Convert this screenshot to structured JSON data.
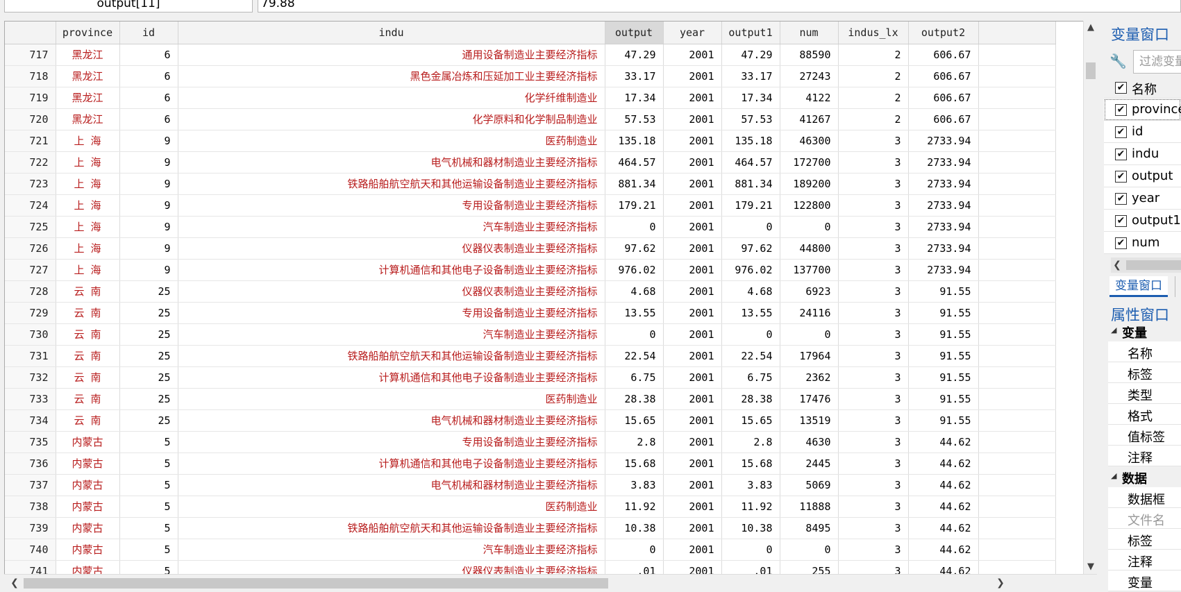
{
  "edit_bar": {
    "cell_name": "output[11]",
    "cell_value": "79.88"
  },
  "grid": {
    "columns": [
      "",
      "province",
      "id",
      "indu",
      "output",
      "year",
      "output1",
      "num",
      "indus_lx",
      "output2"
    ],
    "active_column": "output",
    "rows": [
      [
        "717",
        "黑龙江",
        "6",
        "通用设备制造业主要经济指标",
        "47.29",
        "2001",
        "47.29",
        "88590",
        "2",
        "606.67"
      ],
      [
        "718",
        "黑龙江",
        "6",
        "黑色金属冶炼和压延加工业主要经济指标",
        "33.17",
        "2001",
        "33.17",
        "27243",
        "2",
        "606.67"
      ],
      [
        "719",
        "黑龙江",
        "6",
        "化学纤维制造业",
        "17.34",
        "2001",
        "17.34",
        "4122",
        "2",
        "606.67"
      ],
      [
        "720",
        "黑龙江",
        "6",
        "化学原料和化学制品制造业",
        "57.53",
        "2001",
        "57.53",
        "41267",
        "2",
        "606.67"
      ],
      [
        "721",
        "上 海",
        "9",
        "医药制造业",
        "135.18",
        "2001",
        "135.18",
        "46300",
        "3",
        "2733.94"
      ],
      [
        "722",
        "上 海",
        "9",
        "电气机械和器材制造业主要经济指标",
        "464.57",
        "2001",
        "464.57",
        "172700",
        "3",
        "2733.94"
      ],
      [
        "723",
        "上 海",
        "9",
        "铁路船舶航空航天和其他运输设备制造业主要经济指标",
        "881.34",
        "2001",
        "881.34",
        "189200",
        "3",
        "2733.94"
      ],
      [
        "724",
        "上 海",
        "9",
        "专用设备制造业主要经济指标",
        "179.21",
        "2001",
        "179.21",
        "122800",
        "3",
        "2733.94"
      ],
      [
        "725",
        "上 海",
        "9",
        "汽车制造业主要经济指标",
        "0",
        "2001",
        "0",
        "0",
        "3",
        "2733.94"
      ],
      [
        "726",
        "上 海",
        "9",
        "仪器仪表制造业主要经济指标",
        "97.62",
        "2001",
        "97.62",
        "44800",
        "3",
        "2733.94"
      ],
      [
        "727",
        "上 海",
        "9",
        "计算机通信和其他电子设备制造业主要经济指标",
        "976.02",
        "2001",
        "976.02",
        "137700",
        "3",
        "2733.94"
      ],
      [
        "728",
        "云 南",
        "25",
        "仪器仪表制造业主要经济指标",
        "4.68",
        "2001",
        "4.68",
        "6923",
        "3",
        "91.55"
      ],
      [
        "729",
        "云 南",
        "25",
        "专用设备制造业主要经济指标",
        "13.55",
        "2001",
        "13.55",
        "24116",
        "3",
        "91.55"
      ],
      [
        "730",
        "云 南",
        "25",
        "汽车制造业主要经济指标",
        "0",
        "2001",
        "0",
        "0",
        "3",
        "91.55"
      ],
      [
        "731",
        "云 南",
        "25",
        "铁路船舶航空航天和其他运输设备制造业主要经济指标",
        "22.54",
        "2001",
        "22.54",
        "17964",
        "3",
        "91.55"
      ],
      [
        "732",
        "云 南",
        "25",
        "计算机通信和其他电子设备制造业主要经济指标",
        "6.75",
        "2001",
        "6.75",
        "2362",
        "3",
        "91.55"
      ],
      [
        "733",
        "云 南",
        "25",
        "医药制造业",
        "28.38",
        "2001",
        "28.38",
        "17476",
        "3",
        "91.55"
      ],
      [
        "734",
        "云 南",
        "25",
        "电气机械和器材制造业主要经济指标",
        "15.65",
        "2001",
        "15.65",
        "13519",
        "3",
        "91.55"
      ],
      [
        "735",
        "内蒙古",
        "5",
        "专用设备制造业主要经济指标",
        "2.8",
        "2001",
        "2.8",
        "4630",
        "3",
        "44.62"
      ],
      [
        "736",
        "内蒙古",
        "5",
        "计算机通信和其他电子设备制造业主要经济指标",
        "15.68",
        "2001",
        "15.68",
        "2445",
        "3",
        "44.62"
      ],
      [
        "737",
        "内蒙古",
        "5",
        "电气机械和器材制造业主要经济指标",
        "3.83",
        "2001",
        "3.83",
        "5069",
        "3",
        "44.62"
      ],
      [
        "738",
        "内蒙古",
        "5",
        "医药制造业",
        "11.92",
        "2001",
        "11.92",
        "11888",
        "3",
        "44.62"
      ],
      [
        "739",
        "内蒙古",
        "5",
        "铁路船舶航空航天和其他运输设备制造业主要经济指标",
        "10.38",
        "2001",
        "10.38",
        "8495",
        "3",
        "44.62"
      ],
      [
        "740",
        "内蒙古",
        "5",
        "汽车制造业主要经济指标",
        "0",
        "2001",
        "0",
        "0",
        "3",
        "44.62"
      ],
      [
        "741",
        "内蒙古",
        "5",
        "仪器仪表制造业主要经济指标",
        ".01",
        "2001",
        ".01",
        "255",
        "3",
        "44.62"
      ]
    ]
  },
  "variables_panel": {
    "title": "变量窗口",
    "filter_placeholder": "过滤变量",
    "header_label": "名称",
    "items": [
      "province",
      "id",
      "indu",
      "output",
      "year",
      "output1",
      "num"
    ],
    "selected_item": "province",
    "tab_label": "变量窗口"
  },
  "properties_panel": {
    "title": "属性窗口",
    "sections": [
      {
        "label": "变量",
        "items": [
          "名称",
          "标签",
          "类型",
          "格式",
          "值标签",
          "注释"
        ]
      },
      {
        "label": "数据",
        "items": [
          "数据框",
          "文件名",
          "标签",
          "注释",
          "变量"
        ]
      }
    ]
  },
  "colors": {
    "string_text": "#b81c1c",
    "panel_title": "#1c5db0",
    "active_header": "#d9d9d9"
  }
}
